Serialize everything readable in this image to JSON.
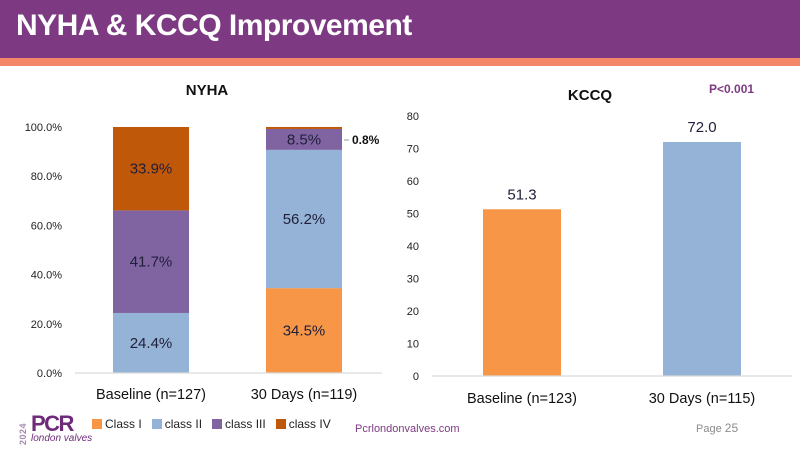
{
  "header": {
    "title": "NYHA & KCCQ Improvement"
  },
  "colors": {
    "header_bg": "#7d3a82",
    "stripe": "#f4876a",
    "class_i": "#f79646",
    "class_ii": "#95b3d7",
    "class_iii": "#8064a2",
    "class_iv": "#c0580a"
  },
  "chart_data": [
    {
      "type": "bar",
      "stacked": true,
      "title": "NYHA",
      "categories": [
        "Baseline (n=127)",
        "30 Days (n=119)"
      ],
      "series": [
        {
          "name": "Class I",
          "values": [
            0,
            34.5
          ],
          "labels": [
            "",
            "34.5%"
          ]
        },
        {
          "name": "class II",
          "values": [
            24.4,
            56.2
          ],
          "labels": [
            "24.4%",
            "56.2%"
          ]
        },
        {
          "name": "class III",
          "values": [
            41.7,
            8.5
          ],
          "labels": [
            "41.7%",
            "8.5%"
          ]
        },
        {
          "name": "class IV",
          "values": [
            33.9,
            0.8
          ],
          "labels": [
            "33.9%",
            "0.8%"
          ]
        }
      ],
      "yticks": [
        "0.0%",
        "20.0%",
        "40.0%",
        "60.0%",
        "80.0%",
        "100.0%"
      ],
      "ylim": [
        0,
        100
      ],
      "legend": "bottom",
      "xlabel": "",
      "ylabel": ""
    },
    {
      "type": "bar",
      "title": "KCCQ",
      "annotation": "P<0.001",
      "categories": [
        "Baseline  (n=123)",
        "30 Days (n=115)"
      ],
      "values": [
        51.3,
        72.0
      ],
      "value_labels": [
        "51.3",
        "72.0"
      ],
      "yticks": [
        "0",
        "10",
        "20",
        "30",
        "40",
        "50",
        "60",
        "70",
        "80"
      ],
      "ylim": [
        0,
        80
      ],
      "xlabel": "",
      "ylabel": ""
    }
  ],
  "footer": {
    "logo_year": "2024",
    "logo_name": "PCR",
    "logo_sub": "london valves",
    "url": "Pcrlondonvalves.com",
    "page_label": "Page",
    "page_number": "25"
  }
}
